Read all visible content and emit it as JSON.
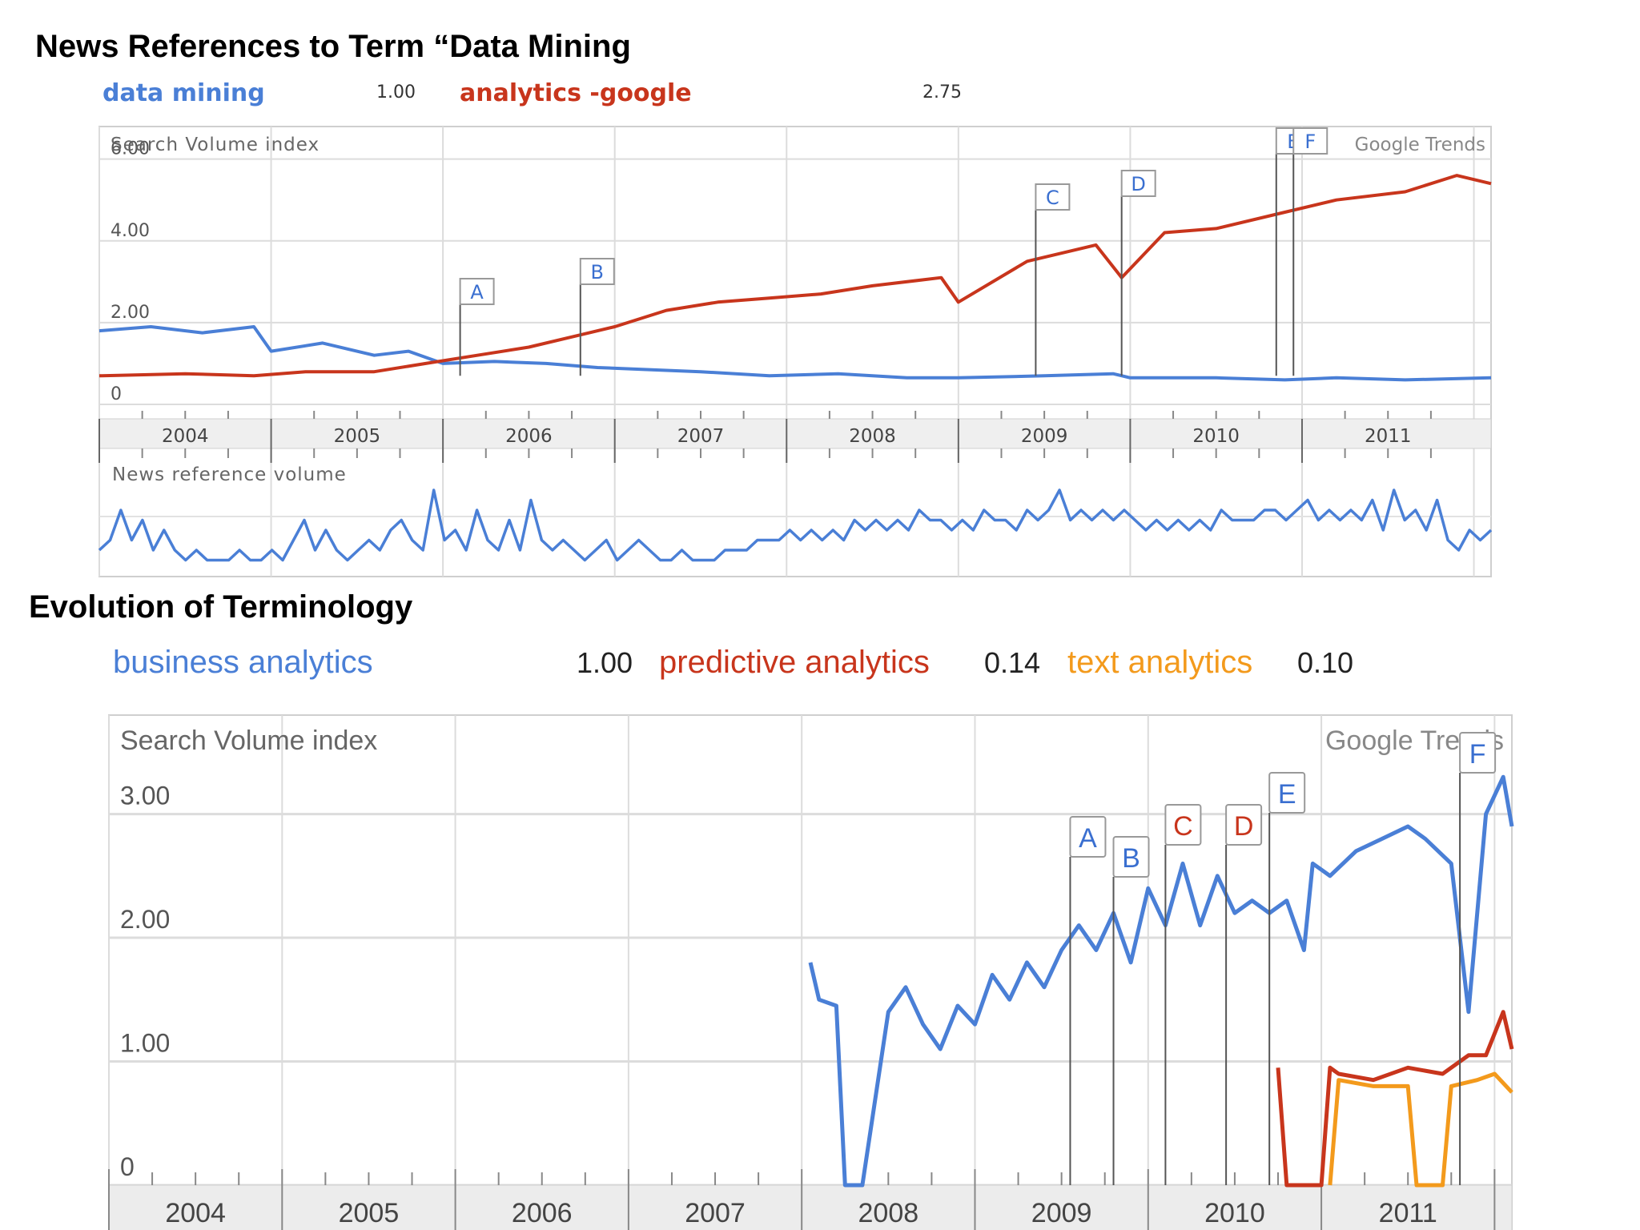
{
  "headings": {
    "top": "News References to Term “Data Mining",
    "bottom": "Evolution of Terminology"
  },
  "colors": {
    "blue": "#4a7fd6",
    "red": "#c8351c",
    "orange": "#f39a1c",
    "grid": "#d6d6d6",
    "flag_text": "#3a6fd0"
  },
  "chart_data": [
    {
      "type": "line",
      "legend": [
        {
          "name": "data mining",
          "value": "1.00",
          "color": "#4a7fd6"
        },
        {
          "name": "analytics -google",
          "value": "2.75",
          "color": "#c8351c"
        }
      ],
      "main_label": "Search Volume index",
      "watermark": "Google Trends",
      "lower_label": "News reference volume",
      "yticks": [
        "6.00",
        "4.00",
        "2.00",
        "0"
      ],
      "ylim": [
        0,
        6.6
      ],
      "xlim": [
        2004,
        2012.1
      ],
      "years": [
        "2004",
        "2005",
        "2006",
        "2007",
        "2008",
        "2009",
        "2010",
        "2011"
      ],
      "flags": [
        {
          "label": "A",
          "x": 2006.1
        },
        {
          "label": "B",
          "x": 2006.8
        },
        {
          "label": "C",
          "x": 2009.45
        },
        {
          "label": "D",
          "x": 2009.95
        },
        {
          "label": "E",
          "x": 2010.85
        },
        {
          "label": "F",
          "x": 2010.95
        }
      ],
      "series": [
        {
          "name": "data mining",
          "color": "#4a7fd6",
          "x": [
            2004.0,
            2004.3,
            2004.6,
            2004.9,
            2005.0,
            2005.3,
            2005.6,
            2005.8,
            2006.0,
            2006.3,
            2006.6,
            2006.9,
            2007.2,
            2007.5,
            2007.9,
            2008.3,
            2008.7,
            2009.0,
            2009.5,
            2009.9,
            2010.0,
            2010.5,
            2010.9,
            2011.2,
            2011.6,
            2012.1
          ],
          "y": [
            1.8,
            1.9,
            1.75,
            1.9,
            1.3,
            1.5,
            1.2,
            1.3,
            1.0,
            1.05,
            1.0,
            0.9,
            0.85,
            0.8,
            0.7,
            0.75,
            0.65,
            0.65,
            0.7,
            0.75,
            0.65,
            0.65,
            0.6,
            0.65,
            0.6,
            0.65
          ]
        },
        {
          "name": "analytics -google",
          "color": "#c8351c",
          "x": [
            2004.0,
            2004.5,
            2004.9,
            2005.2,
            2005.6,
            2005.9,
            2006.2,
            2006.5,
            2006.8,
            2007.0,
            2007.3,
            2007.6,
            2007.9,
            2008.2,
            2008.5,
            2008.9,
            2009.0,
            2009.4,
            2009.8,
            2009.95,
            2010.2,
            2010.5,
            2010.9,
            2011.2,
            2011.6,
            2011.9,
            2012.1
          ],
          "y": [
            0.7,
            0.75,
            0.7,
            0.8,
            0.8,
            1.0,
            1.2,
            1.4,
            1.7,
            1.9,
            2.3,
            2.5,
            2.6,
            2.7,
            2.9,
            3.1,
            2.5,
            3.5,
            3.9,
            3.1,
            4.2,
            4.3,
            4.7,
            5.0,
            5.2,
            5.6,
            5.4
          ]
        }
      ],
      "news_volume": [
        2,
        3,
        6,
        3,
        5,
        2,
        4,
        2,
        1,
        2,
        1,
        1,
        1,
        2,
        1,
        1,
        2,
        1,
        3,
        5,
        2,
        4,
        2,
        1,
        2,
        3,
        2,
        4,
        5,
        3,
        2,
        8,
        3,
        4,
        2,
        6,
        3,
        2,
        5,
        2,
        7,
        3,
        2,
        3,
        2,
        1,
        2,
        3,
        1,
        2,
        3,
        2,
        1,
        1,
        2,
        1,
        1,
        1,
        2,
        2,
        2,
        3,
        3,
        3,
        4,
        3,
        4,
        3,
        4,
        3,
        5,
        4,
        5,
        4,
        5,
        4,
        6,
        5,
        5,
        4,
        5,
        4,
        6,
        5,
        5,
        4,
        6,
        5,
        6,
        8,
        5,
        6,
        5,
        6,
        5,
        6,
        5,
        4,
        5,
        4,
        5,
        4,
        5,
        4,
        6,
        5,
        5,
        5,
        6,
        6,
        5,
        6,
        7,
        5,
        6,
        5,
        6,
        5,
        7,
        4,
        8,
        5,
        6,
        4,
        7,
        3,
        2,
        4,
        3,
        4
      ]
    },
    {
      "type": "line",
      "legend": [
        {
          "name": "business analytics",
          "value": "1.00",
          "color": "#4a7fd6"
        },
        {
          "name": "predictive analytics",
          "value": "0.14",
          "color": "#c8351c"
        },
        {
          "name": "text analytics",
          "value": "0.10",
          "color": "#f39a1c"
        }
      ],
      "main_label": "Search Volume index",
      "watermark": "Google Trends",
      "yticks": [
        "3.00",
        "2.00",
        "1.00",
        "0"
      ],
      "ylim": [
        0,
        3.8
      ],
      "xlim": [
        2004,
        2012.1
      ],
      "years": [
        "2004",
        "2005",
        "2006",
        "2007",
        "2008",
        "2009",
        "2010",
        "2011"
      ],
      "flags": [
        {
          "label": "A",
          "x": 2009.55,
          "color": "#3a6fd0"
        },
        {
          "label": "B",
          "x": 2009.8,
          "color": "#3a6fd0"
        },
        {
          "label": "C",
          "x": 2010.1,
          "color": "#c8351c"
        },
        {
          "label": "D",
          "x": 2010.45,
          "color": "#c8351c"
        },
        {
          "label": "E",
          "x": 2010.7,
          "color": "#3a6fd0"
        },
        {
          "label": "F",
          "x": 2011.8,
          "color": "#3a6fd0"
        }
      ],
      "series": [
        {
          "name": "business analytics",
          "color": "#4a7fd6",
          "x": [
            2008.05,
            2008.1,
            2008.2,
            2008.25,
            2008.35,
            2008.5,
            2008.6,
            2008.7,
            2008.8,
            2008.9,
            2009.0,
            2009.1,
            2009.2,
            2009.3,
            2009.4,
            2009.5,
            2009.6,
            2009.7,
            2009.8,
            2009.9,
            2010.0,
            2010.1,
            2010.2,
            2010.3,
            2010.4,
            2010.5,
            2010.6,
            2010.7,
            2010.8,
            2010.9,
            2010.95,
            2011.05,
            2011.2,
            2011.35,
            2011.5,
            2011.6,
            2011.75,
            2011.85,
            2011.95,
            2012.05,
            2012.1
          ],
          "y": [
            1.8,
            1.5,
            1.45,
            0.0,
            0.0,
            1.4,
            1.6,
            1.3,
            1.1,
            1.45,
            1.3,
            1.7,
            1.5,
            1.8,
            1.6,
            1.9,
            2.1,
            1.9,
            2.2,
            1.8,
            2.4,
            2.1,
            2.6,
            2.1,
            2.5,
            2.2,
            2.3,
            2.2,
            2.3,
            1.9,
            2.6,
            2.5,
            2.7,
            2.8,
            2.9,
            2.8,
            2.6,
            1.4,
            3.0,
            3.3,
            2.9
          ]
        },
        {
          "name": "predictive analytics",
          "color": "#c8351c",
          "x": [
            2010.75,
            2010.8,
            2010.85,
            2011.0,
            2011.05,
            2011.1,
            2011.3,
            2011.5,
            2011.7,
            2011.85,
            2011.95,
            2012.05,
            2012.1
          ],
          "y": [
            0.95,
            0.0,
            0.0,
            0.0,
            0.95,
            0.9,
            0.85,
            0.95,
            0.9,
            1.05,
            1.05,
            1.4,
            1.1
          ]
        },
        {
          "name": "text analytics",
          "color": "#f39a1c",
          "x": [
            2011.05,
            2011.1,
            2011.3,
            2011.5,
            2011.55,
            2011.7,
            2011.75,
            2011.9,
            2012.0,
            2012.1
          ],
          "y": [
            0.0,
            0.85,
            0.8,
            0.8,
            0.0,
            0.0,
            0.8,
            0.85,
            0.9,
            0.75
          ]
        }
      ]
    }
  ]
}
